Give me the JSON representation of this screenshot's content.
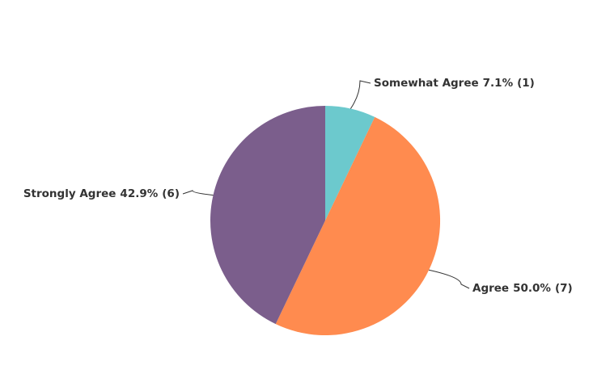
{
  "chart_data": {
    "type": "pie",
    "categories": [
      "Somewhat Agree",
      "Agree",
      "Strongly Agree"
    ],
    "values": [
      7.1,
      50.0,
      42.9
    ],
    "value_labels": [
      "7.1%",
      "50.0%",
      "42.9%"
    ],
    "counts": [
      1,
      7,
      6
    ],
    "count_labels": [
      "(1)",
      "(7)",
      "(6)"
    ],
    "colors": [
      "#6cc9cd",
      "#ff8b4f",
      "#7b5e8c"
    ]
  }
}
